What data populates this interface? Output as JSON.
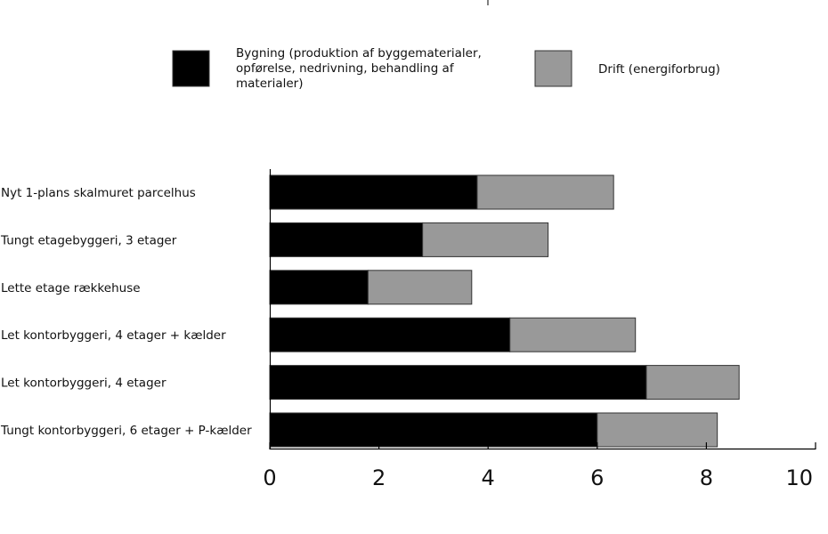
{
  "chart_data": {
    "type": "bar",
    "orientation": "horizontal",
    "stacked": true,
    "categories": [
      "Nyt 1-plans skalmuret parcelhus",
      "Tungt etagebyggeri, 3 etager",
      "Lette etage rækkehuse",
      "Let kontorbyggeri, 4 etager + kælder",
      "Let kontorbyggeri, 4 etager",
      "Tungt kontorbyggeri, 6 etager + P-kælder"
    ],
    "series": [
      {
        "name": "Bygning (produktion af byggematerialer, opførelse, nedrivning, behandling af materialer)",
        "name_lines": [
          "Bygning (produktion af byggematerialer,",
          "opførelse, nedrivning, behandling af",
          "materialer)"
        ],
        "color": "#000000",
        "values": [
          3.8,
          2.8,
          1.8,
          4.4,
          6.9,
          6.0
        ]
      },
      {
        "name": "Drift (energiforbrug)",
        "name_lines": [
          "Drift (energiforbrug)"
        ],
        "color": "#999999",
        "values": [
          2.5,
          2.3,
          1.9,
          2.3,
          1.7,
          2.2
        ]
      }
    ],
    "xlim": [
      0,
      10
    ],
    "xticks": [
      "0",
      "2",
      "4",
      "6",
      "8",
      "10"
    ],
    "xtick_values": [
      0,
      2,
      4,
      6,
      8,
      10
    ],
    "grid": false,
    "legend_position": "top"
  }
}
